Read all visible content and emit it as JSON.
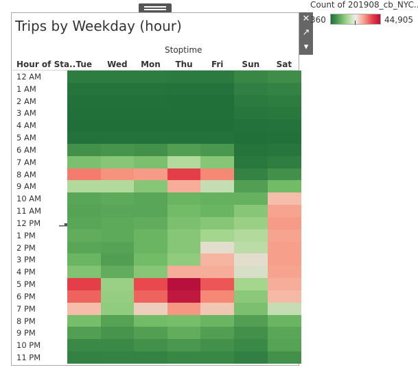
{
  "title": "Trips by Weekday (hour)",
  "legend": {
    "title": "Count of 201908_cb_NYC..",
    "min": "360",
    "max": "44,905"
  },
  "chart_data": {
    "type": "heatmap",
    "title": "Trips by Weekday (hour)",
    "column_axis_title": "Stoptime",
    "row_axis_title": "Hour of Sta..",
    "columns": [
      "Tue",
      "Wed",
      "Mon",
      "Thu",
      "Fri",
      "Sun",
      "Sat"
    ],
    "rows": [
      "12 AM",
      "1 AM",
      "2 AM",
      "3 AM",
      "4 AM",
      "5 AM",
      "6 AM",
      "7 AM",
      "8 AM",
      "9 AM",
      "10 AM",
      "11 AM",
      "12 PM",
      "1 PM",
      "2 PM",
      "3 PM",
      "4 PM",
      "5 PM",
      "6 PM",
      "7 PM",
      "8 PM",
      "9 PM",
      "10 PM",
      "11 PM"
    ],
    "color_range": [
      360,
      44905
    ],
    "values": [
      [
        4000,
        4000,
        4000,
        3500,
        3500,
        7000,
        8500
      ],
      [
        2000,
        2000,
        2000,
        1800,
        1800,
        5000,
        6000
      ],
      [
        1200,
        1200,
        1200,
        1000,
        1000,
        3500,
        4000
      ],
      [
        900,
        900,
        900,
        800,
        800,
        2500,
        3000
      ],
      [
        600,
        600,
        600,
        500,
        500,
        1500,
        1800
      ],
      [
        1500,
        1500,
        1500,
        1400,
        1400,
        1000,
        1200
      ],
      [
        9000,
        9500,
        9000,
        11000,
        10000,
        2000,
        2500
      ],
      [
        16000,
        17000,
        16000,
        21000,
        17000,
        3000,
        4500
      ],
      [
        35000,
        33000,
        32000,
        40000,
        34000,
        6000,
        9000
      ],
      [
        21000,
        21000,
        17000,
        30000,
        22000,
        11000,
        15000
      ],
      [
        12000,
        12500,
        12000,
        14000,
        13500,
        13500,
        28000
      ],
      [
        11500,
        12000,
        12000,
        15000,
        14000,
        17000,
        31000
      ],
      [
        12000,
        12500,
        13000,
        16000,
        17000,
        19000,
        32000
      ],
      [
        13000,
        12500,
        14000,
        17000,
        20000,
        21000,
        31000
      ],
      [
        12000,
        11500,
        14000,
        17000,
        24000,
        21500,
        31500
      ],
      [
        14000,
        11000,
        15000,
        18000,
        29000,
        24000,
        31500
      ],
      [
        16500,
        13000,
        17000,
        30000,
        30000,
        23000,
        31000
      ],
      [
        40000,
        19000,
        39000,
        44905,
        38000,
        20000,
        30000
      ],
      [
        37000,
        18500,
        37000,
        44000,
        34000,
        17500,
        28500
      ],
      [
        28000,
        18000,
        26000,
        32500,
        27000,
        16000,
        22000
      ],
      [
        15500,
        11500,
        15000,
        15500,
        14000,
        11000,
        14000
      ],
      [
        11000,
        9500,
        11000,
        13000,
        11000,
        9000,
        12000
      ],
      [
        7500,
        7500,
        9000,
        10000,
        9000,
        7500,
        11500
      ],
      [
        5500,
        6000,
        6000,
        7000,
        7000,
        5000,
        9000
      ]
    ]
  }
}
